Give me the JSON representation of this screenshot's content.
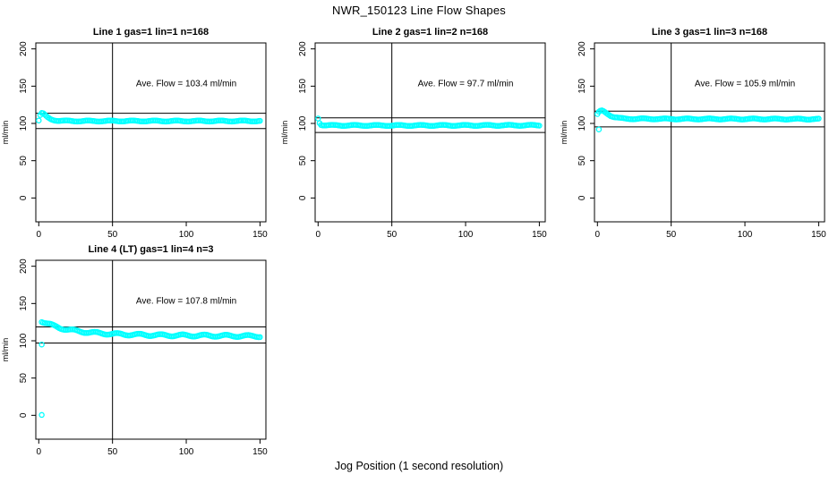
{
  "page": {
    "main_title": "NWR_150123  Line Flow Shapes",
    "x_axis_label": "Jog Position (1 second resolution)",
    "background_color": "#FFFFFF",
    "axis_color": "#000000"
  },
  "chart_data": [
    {
      "type": "scatter",
      "title": "Line 1 gas=1 lin=1 n=168",
      "annotation": "Ave. Flow =  103.4  ml/min",
      "ave_flow_ml_min": 103.4,
      "ylabel": "ml/min",
      "xlim": [
        0,
        150
      ],
      "ylim": [
        0,
        200
      ],
      "xticks": [
        0,
        50,
        100,
        150
      ],
      "yticks": [
        0,
        50,
        100,
        150,
        200
      ],
      "vline_x": 50,
      "hlines": [
        113.7,
        93.1
      ],
      "marker": "open-circle",
      "marker_color": "#00FFFF",
      "n_markers": 150,
      "x_start": 0,
      "jitter": 0.7,
      "keypoints": [
        [
          0,
          104
        ],
        [
          1,
          111
        ],
        [
          2,
          113.5
        ],
        [
          3,
          113
        ],
        [
          4,
          111.5
        ],
        [
          5,
          109.5
        ],
        [
          6,
          108
        ],
        [
          8,
          106
        ],
        [
          10,
          104.8
        ],
        [
          13,
          103.8
        ],
        [
          16,
          103.4
        ],
        [
          30,
          103.2
        ],
        [
          60,
          103.3
        ],
        [
          100,
          103.2
        ],
        [
          150,
          103.3
        ]
      ],
      "outliers": []
    },
    {
      "type": "scatter",
      "title": "Line 2 gas=1 lin=2 n=168",
      "annotation": "Ave. Flow =  97.7  ml/min",
      "ave_flow_ml_min": 97.7,
      "ylabel": "ml/min",
      "xlim": [
        0,
        150
      ],
      "ylim": [
        0,
        200
      ],
      "xticks": [
        0,
        50,
        100,
        150
      ],
      "yticks": [
        0,
        50,
        100,
        150,
        200
      ],
      "vline_x": 50,
      "hlines": [
        107.5,
        87.9
      ],
      "marker": "open-circle",
      "marker_color": "#00FFFF",
      "n_markers": 150,
      "x_start": 0,
      "jitter": 0.7,
      "keypoints": [
        [
          0,
          107
        ],
        [
          1,
          101
        ],
        [
          2,
          98.5
        ],
        [
          3,
          98
        ],
        [
          5,
          97.6
        ],
        [
          10,
          97.4
        ],
        [
          50,
          97.3
        ],
        [
          100,
          97.4
        ],
        [
          150,
          97.5
        ]
      ],
      "outliers": []
    },
    {
      "type": "scatter",
      "title": "Line 3 gas=1 lin=3 n=168",
      "annotation": "Ave. Flow =  105.9  ml/min",
      "ave_flow_ml_min": 105.9,
      "ylabel": "ml/min",
      "xlim": [
        0,
        150
      ],
      "ylim": [
        0,
        200
      ],
      "xticks": [
        0,
        50,
        100,
        150
      ],
      "yticks": [
        0,
        50,
        100,
        150,
        200
      ],
      "vline_x": 50,
      "hlines": [
        116.5,
        95.3
      ],
      "marker": "open-circle",
      "marker_color": "#00FFFF",
      "n_markers": 150,
      "x_start": 0,
      "jitter": 0.7,
      "keypoints": [
        [
          0,
          112
        ],
        [
          1,
          115
        ],
        [
          2,
          116.5
        ],
        [
          3,
          117
        ],
        [
          4,
          116.5
        ],
        [
          5,
          115.5
        ],
        [
          7,
          113
        ],
        [
          9,
          110.5
        ],
        [
          11,
          108.8
        ],
        [
          14,
          107.3
        ],
        [
          18,
          106.5
        ],
        [
          25,
          106.2
        ],
        [
          60,
          106
        ],
        [
          100,
          106
        ],
        [
          150,
          105.8
        ]
      ],
      "outliers": [
        [
          1,
          92
        ]
      ]
    },
    {
      "type": "scatter",
      "title": "Line 4 (LT) gas=1 lin=4 n=3",
      "annotation": "Ave. Flow =  107.8  ml/min",
      "ave_flow_ml_min": 107.8,
      "ylabel": "ml/min",
      "xlim": [
        0,
        150
      ],
      "ylim": [
        0,
        200
      ],
      "xticks": [
        0,
        50,
        100,
        150
      ],
      "yticks": [
        0,
        50,
        100,
        150,
        200
      ],
      "vline_x": 50,
      "hlines": [
        118.6,
        97.0
      ],
      "marker": "open-circle",
      "marker_color": "#00FFFF",
      "n_markers": 150,
      "x_start": 2,
      "jitter": 1.4,
      "keypoints": [
        [
          2,
          126.5
        ],
        [
          4,
          124.5
        ],
        [
          6,
          123
        ],
        [
          8,
          121.5
        ],
        [
          10,
          120
        ],
        [
          14,
          117.5
        ],
        [
          18,
          115.8
        ],
        [
          22,
          114.3
        ],
        [
          27,
          112.8
        ],
        [
          33,
          111.5
        ],
        [
          40,
          110.3
        ],
        [
          50,
          109.2
        ],
        [
          60,
          108.5
        ],
        [
          75,
          107.8
        ],
        [
          90,
          107.3
        ],
        [
          110,
          107
        ],
        [
          130,
          106.6
        ],
        [
          150,
          106.2
        ]
      ],
      "outliers": [
        [
          2,
          95
        ],
        [
          2,
          0.5
        ]
      ]
    }
  ]
}
